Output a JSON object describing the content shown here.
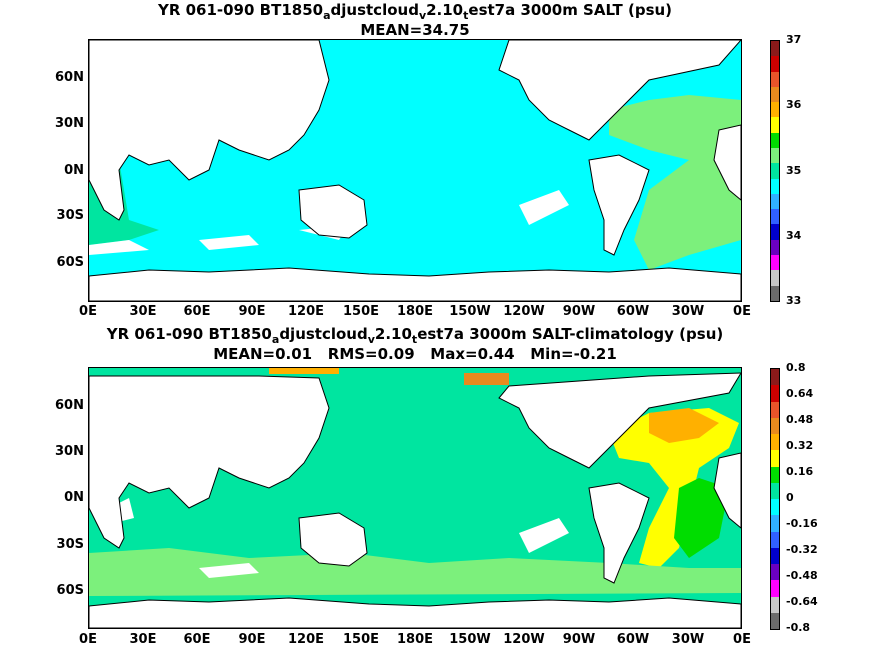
{
  "panels": [
    {
      "title_parts": [
        "YR 061-090 BT1850",
        "a",
        "djustcloud",
        "v",
        "2.10",
        "t",
        "est7a 3000m SALT (psu)"
      ],
      "subtitle": "MEAN=34.75",
      "colorbar_labels": [
        "37",
        "36",
        "35",
        "34",
        "33"
      ],
      "colorbar_colors": [
        "#8b1a1a",
        "#cc0000",
        "#e8542a",
        "#e88a1e",
        "#ffb000",
        "#ffff00",
        "#00dd00",
        "#7cf07c",
        "#00e5a0",
        "#00ffff",
        "#30b0ff",
        "#3060ff",
        "#0000cc",
        "#6a00c0",
        "#ff00ff",
        "#c8c8c8",
        "#6b6b6b"
      ],
      "ocean_color": "#00ffff",
      "atlantic_color": "#7cf07c",
      "southern_color": "#00e5a0"
    },
    {
      "title_parts": [
        "YR 061-090 BT1850",
        "a",
        "djustcloud",
        "v",
        "2.10",
        "t",
        "est7a 3000m SALT-climatology (psu)"
      ],
      "subtitle": "MEAN=0.01   RMS=0.09   Max=0.44   Min=-0.21",
      "colorbar_labels": [
        "0.8",
        "0.64",
        "0.48",
        "0.32",
        "0.16",
        "0",
        "-0.16",
        "-0.32",
        "-0.48",
        "-0.64",
        "-0.8"
      ],
      "colorbar_colors": [
        "#8b1a1a",
        "#cc0000",
        "#e8542a",
        "#e88a1e",
        "#ffb000",
        "#ffff00",
        "#00dd00",
        "#00e5a0",
        "#00ffff",
        "#30b0ff",
        "#3060ff",
        "#0000cc",
        "#6a00c0",
        "#ff00ff",
        "#c8c8c8",
        "#6b6b6b"
      ],
      "ocean_color": "#00e5a0",
      "atlantic_color": "#ffff00",
      "southern_color": "#7cf07c"
    }
  ],
  "lat_labels": [
    "60N",
    "30N",
    "0N",
    "30S",
    "60S"
  ],
  "lon_labels": [
    "0E",
    "30E",
    "60E",
    "90E",
    "120E",
    "150E",
    "180E",
    "150W",
    "120W",
    "90W",
    "60W",
    "30W",
    "0E"
  ]
}
